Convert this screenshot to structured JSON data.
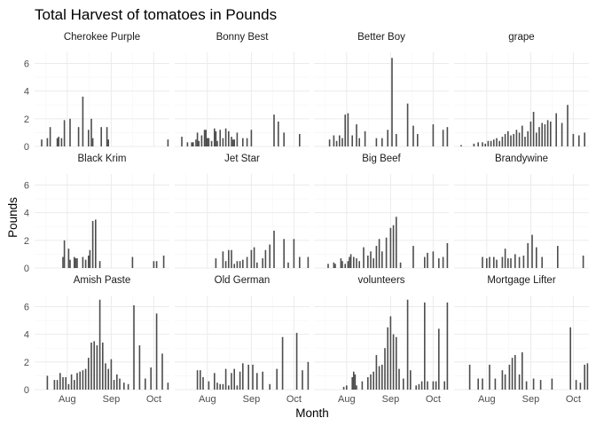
{
  "chart_data": {
    "type": "bar",
    "title": "Total Harvest of tomatoes in Pounds",
    "xlabel": "Month",
    "ylabel": "Pounds",
    "x_unit": "day of year",
    "xlim": [
      190,
      285
    ],
    "ylim": [
      0,
      6.8
    ],
    "x_ticks": [
      {
        "value": 213,
        "label": "Aug"
      },
      {
        "value": 244,
        "label": "Sep"
      },
      {
        "value": 274,
        "label": "Oct"
      }
    ],
    "y_ticks": [
      0,
      2,
      4,
      6
    ],
    "grid": true,
    "bar_color": "#4d4d4d",
    "facets": [
      {
        "name": "Cherokee Purple",
        "x": [
          195,
          199,
          201,
          206,
          207,
          209,
          211,
          215,
          221,
          224,
          228,
          230,
          231,
          237,
          241,
          242,
          284
        ],
        "values": [
          0.5,
          0.6,
          1.4,
          0.6,
          0.7,
          0.6,
          1.9,
          2.0,
          1.4,
          3.6,
          1.2,
          2.0,
          0.6,
          1.4,
          1.4,
          0.5,
          0.5
        ]
      },
      {
        "name": "Bonny Best",
        "x": [
          195,
          199,
          202,
          203,
          205,
          206,
          207,
          209,
          211,
          212,
          213,
          214,
          216,
          218,
          219,
          220,
          222,
          224,
          226,
          228,
          230,
          231,
          232,
          234,
          238,
          241,
          244,
          260,
          263,
          267,
          278
        ],
        "values": [
          0.7,
          0.3,
          0.3,
          0.3,
          0.5,
          1.0,
          0.4,
          0.8,
          1.2,
          1.2,
          0.6,
          0.6,
          0.4,
          1.3,
          1.1,
          0.4,
          1.2,
          0.6,
          1.3,
          1.1,
          0.7,
          0.5,
          0.5,
          1.0,
          0.6,
          0.6,
          1.2,
          2.3,
          1.8,
          1.0,
          0.9
        ]
      },
      {
        "name": "Better Boy",
        "x": [
          201,
          204,
          206,
          208,
          210,
          212,
          214,
          217,
          220,
          222,
          226,
          234,
          238,
          242,
          245,
          248,
          256,
          260,
          263,
          274,
          281,
          284
        ],
        "values": [
          0.5,
          0.8,
          0.4,
          0.8,
          0.6,
          2.3,
          2.4,
          0.8,
          1.6,
          0.6,
          1.1,
          0.6,
          0.6,
          1.2,
          6.4,
          0.9,
          3.1,
          1.5,
          0.9,
          1.6,
          1.2,
          1.4
        ]
      },
      {
        "name": "grape",
        "x": [
          195,
          204,
          207,
          210,
          212,
          214,
          216,
          218,
          220,
          222,
          224,
          226,
          228,
          230,
          232,
          234,
          236,
          238,
          240,
          242,
          244,
          246,
          248,
          250,
          252,
          254,
          256,
          258,
          262,
          266,
          270,
          274,
          278,
          282
        ],
        "values": [
          0.1,
          0.2,
          0.3,
          0.3,
          0.2,
          0.4,
          0.4,
          0.5,
          0.6,
          0.4,
          0.7,
          0.9,
          1.1,
          0.8,
          0.9,
          1.2,
          1.0,
          1.5,
          0.7,
          1.1,
          1.8,
          2.5,
          1.0,
          1.4,
          1.7,
          1.6,
          1.9,
          1.8,
          2.4,
          1.7,
          3.0,
          0.9,
          0.8,
          1.0
        ]
      },
      {
        "name": "Black Krim",
        "x": [
          210,
          211,
          214,
          215,
          218,
          219,
          220,
          224,
          226,
          228,
          229,
          231,
          233,
          236,
          259,
          274,
          276,
          281
        ],
        "values": [
          0.8,
          2.0,
          1.4,
          0.6,
          0.8,
          0.7,
          0.7,
          0.8,
          0.6,
          0.9,
          1.3,
          3.4,
          3.5,
          0.5,
          0.8,
          0.5,
          0.5,
          0.9
        ]
      },
      {
        "name": "Jet Star",
        "x": [
          219,
          224,
          226,
          228,
          230,
          232,
          234,
          236,
          238,
          241,
          244,
          246,
          248,
          252,
          254,
          257,
          260,
          267,
          270,
          274,
          278,
          284
        ],
        "values": [
          0.7,
          1.2,
          0.5,
          1.3,
          1.3,
          0.3,
          0.5,
          0.5,
          0.6,
          0.8,
          1.3,
          1.5,
          0.4,
          0.7,
          1.3,
          1.7,
          2.7,
          2.1,
          0.4,
          2.1,
          0.8,
          0.8
        ]
      },
      {
        "name": "Big Beef",
        "x": [
          200,
          204,
          205,
          209,
          210,
          212,
          214,
          215,
          216,
          218,
          220,
          222,
          225,
          228,
          230,
          232,
          234,
          236,
          238,
          241,
          244,
          246,
          248,
          251,
          260,
          268,
          270,
          274,
          278,
          281,
          284
        ],
        "values": [
          0.3,
          0.4,
          0.3,
          0.7,
          0.5,
          0.3,
          0.5,
          0.8,
          1.0,
          0.8,
          0.7,
          0.5,
          1.5,
          0.9,
          1.2,
          0.7,
          1.6,
          2.1,
          1.2,
          2.2,
          2.9,
          3.1,
          3.7,
          0.4,
          1.6,
          0.8,
          1.1,
          1.2,
          0.7,
          0.8,
          1.8
        ]
      },
      {
        "name": "Brandywine",
        "x": [
          210,
          213,
          215,
          218,
          220,
          224,
          226,
          228,
          230,
          233,
          236,
          239,
          242,
          245,
          248,
          252,
          263,
          281
        ],
        "values": [
          0.8,
          0.7,
          0.8,
          0.8,
          0.6,
          0.8,
          1.4,
          0.7,
          0.7,
          1.0,
          0.8,
          0.9,
          1.8,
          2.4,
          1.5,
          0.8,
          1.6,
          0.9
        ]
      },
      {
        "name": "Amish Paste",
        "x": [
          199,
          204,
          206,
          208,
          210,
          212,
          214,
          216,
          218,
          220,
          222,
          224,
          226,
          228,
          230,
          232,
          234,
          236,
          238,
          240,
          242,
          244,
          246,
          248,
          250,
          253,
          256,
          260,
          264,
          268,
          272,
          276,
          280,
          284
        ],
        "values": [
          1.0,
          0.7,
          0.7,
          1.2,
          0.9,
          0.9,
          0.4,
          1.1,
          0.7,
          1.2,
          1.3,
          1.4,
          1.5,
          2.3,
          3.4,
          3.5,
          3.2,
          6.5,
          3.4,
          1.9,
          1.5,
          2.2,
          0.7,
          1.1,
          0.8,
          0.5,
          0.4,
          6.1,
          3.2,
          0.8,
          1.6,
          5.5,
          2.6,
          0.5
        ]
      },
      {
        "name": "Old German",
        "x": [
          206,
          208,
          210,
          214,
          218,
          220,
          222,
          224,
          226,
          228,
          230,
          232,
          234,
          236,
          238,
          242,
          245,
          248,
          252,
          257,
          262,
          266,
          276,
          280,
          284
        ],
        "values": [
          1.4,
          1.4,
          0.9,
          0.6,
          1.2,
          0.5,
          0.4,
          0.4,
          1.5,
          0.3,
          1.2,
          1.5,
          0.3,
          1.3,
          1.9,
          1.8,
          1.8,
          1.2,
          1.3,
          0.4,
          1.5,
          3.8,
          4.1,
          1.4,
          2.0
        ]
      },
      {
        "name": "volunteers",
        "x": [
          211,
          213,
          217,
          218,
          219,
          220,
          224,
          228,
          230,
          232,
          234,
          236,
          238,
          240,
          242,
          244,
          246,
          248,
          250,
          253,
          256,
          258,
          262,
          264,
          266,
          268,
          270,
          274,
          276,
          278,
          282,
          284
        ],
        "values": [
          0.2,
          0.3,
          0.9,
          1.3,
          1.1,
          0.3,
          0.6,
          0.9,
          1.1,
          1.3,
          2.5,
          1.7,
          1.8,
          3.0,
          4.5,
          5.3,
          4.0,
          3.8,
          1.5,
          0.8,
          6.5,
          1.4,
          0.3,
          0.4,
          0.6,
          6.3,
          0.6,
          0.6,
          0.6,
          4.4,
          0.6,
          6.3
        ]
      },
      {
        "name": "Mortgage Lifter",
        "x": [
          201,
          207,
          210,
          215,
          219,
          224,
          226,
          229,
          231,
          233,
          236,
          238,
          241,
          246,
          251,
          259,
          272,
          276,
          279,
          282,
          284
        ],
        "values": [
          1.8,
          0.8,
          0.8,
          1.8,
          0.8,
          1.4,
          1.1,
          1.8,
          2.3,
          2.5,
          1.1,
          2.7,
          0.6,
          0.8,
          0.7,
          0.8,
          4.5,
          0.7,
          0.5,
          1.8,
          1.9
        ]
      }
    ]
  }
}
